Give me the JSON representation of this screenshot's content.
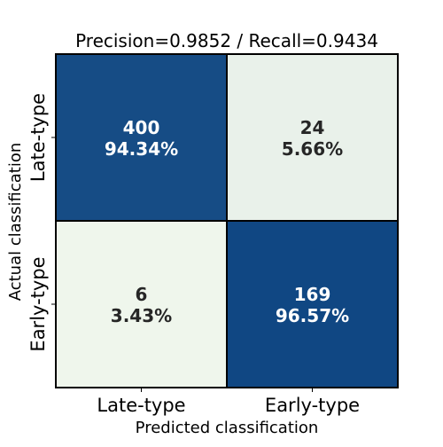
{
  "chart_data": {
    "type": "heatmap",
    "title": "Precision=0.9852 / Recall=0.9434",
    "xlabel": "Predicted classification",
    "ylabel": "Actual classification",
    "x_categories": [
      "Late-type",
      "Early-type"
    ],
    "y_categories": [
      "Late-type",
      "Early-type"
    ],
    "values": [
      [
        400,
        24
      ],
      [
        6,
        169
      ]
    ],
    "percent_labels": [
      [
        "94.34%",
        "5.66%"
      ],
      [
        "3.43%",
        "96.57%"
      ]
    ],
    "colors": {
      "high": "#08417f",
      "low": "#f7fcf0",
      "text_on_high": "#ffffff",
      "text_on_low": "#262626",
      "grid": "#000000"
    }
  }
}
